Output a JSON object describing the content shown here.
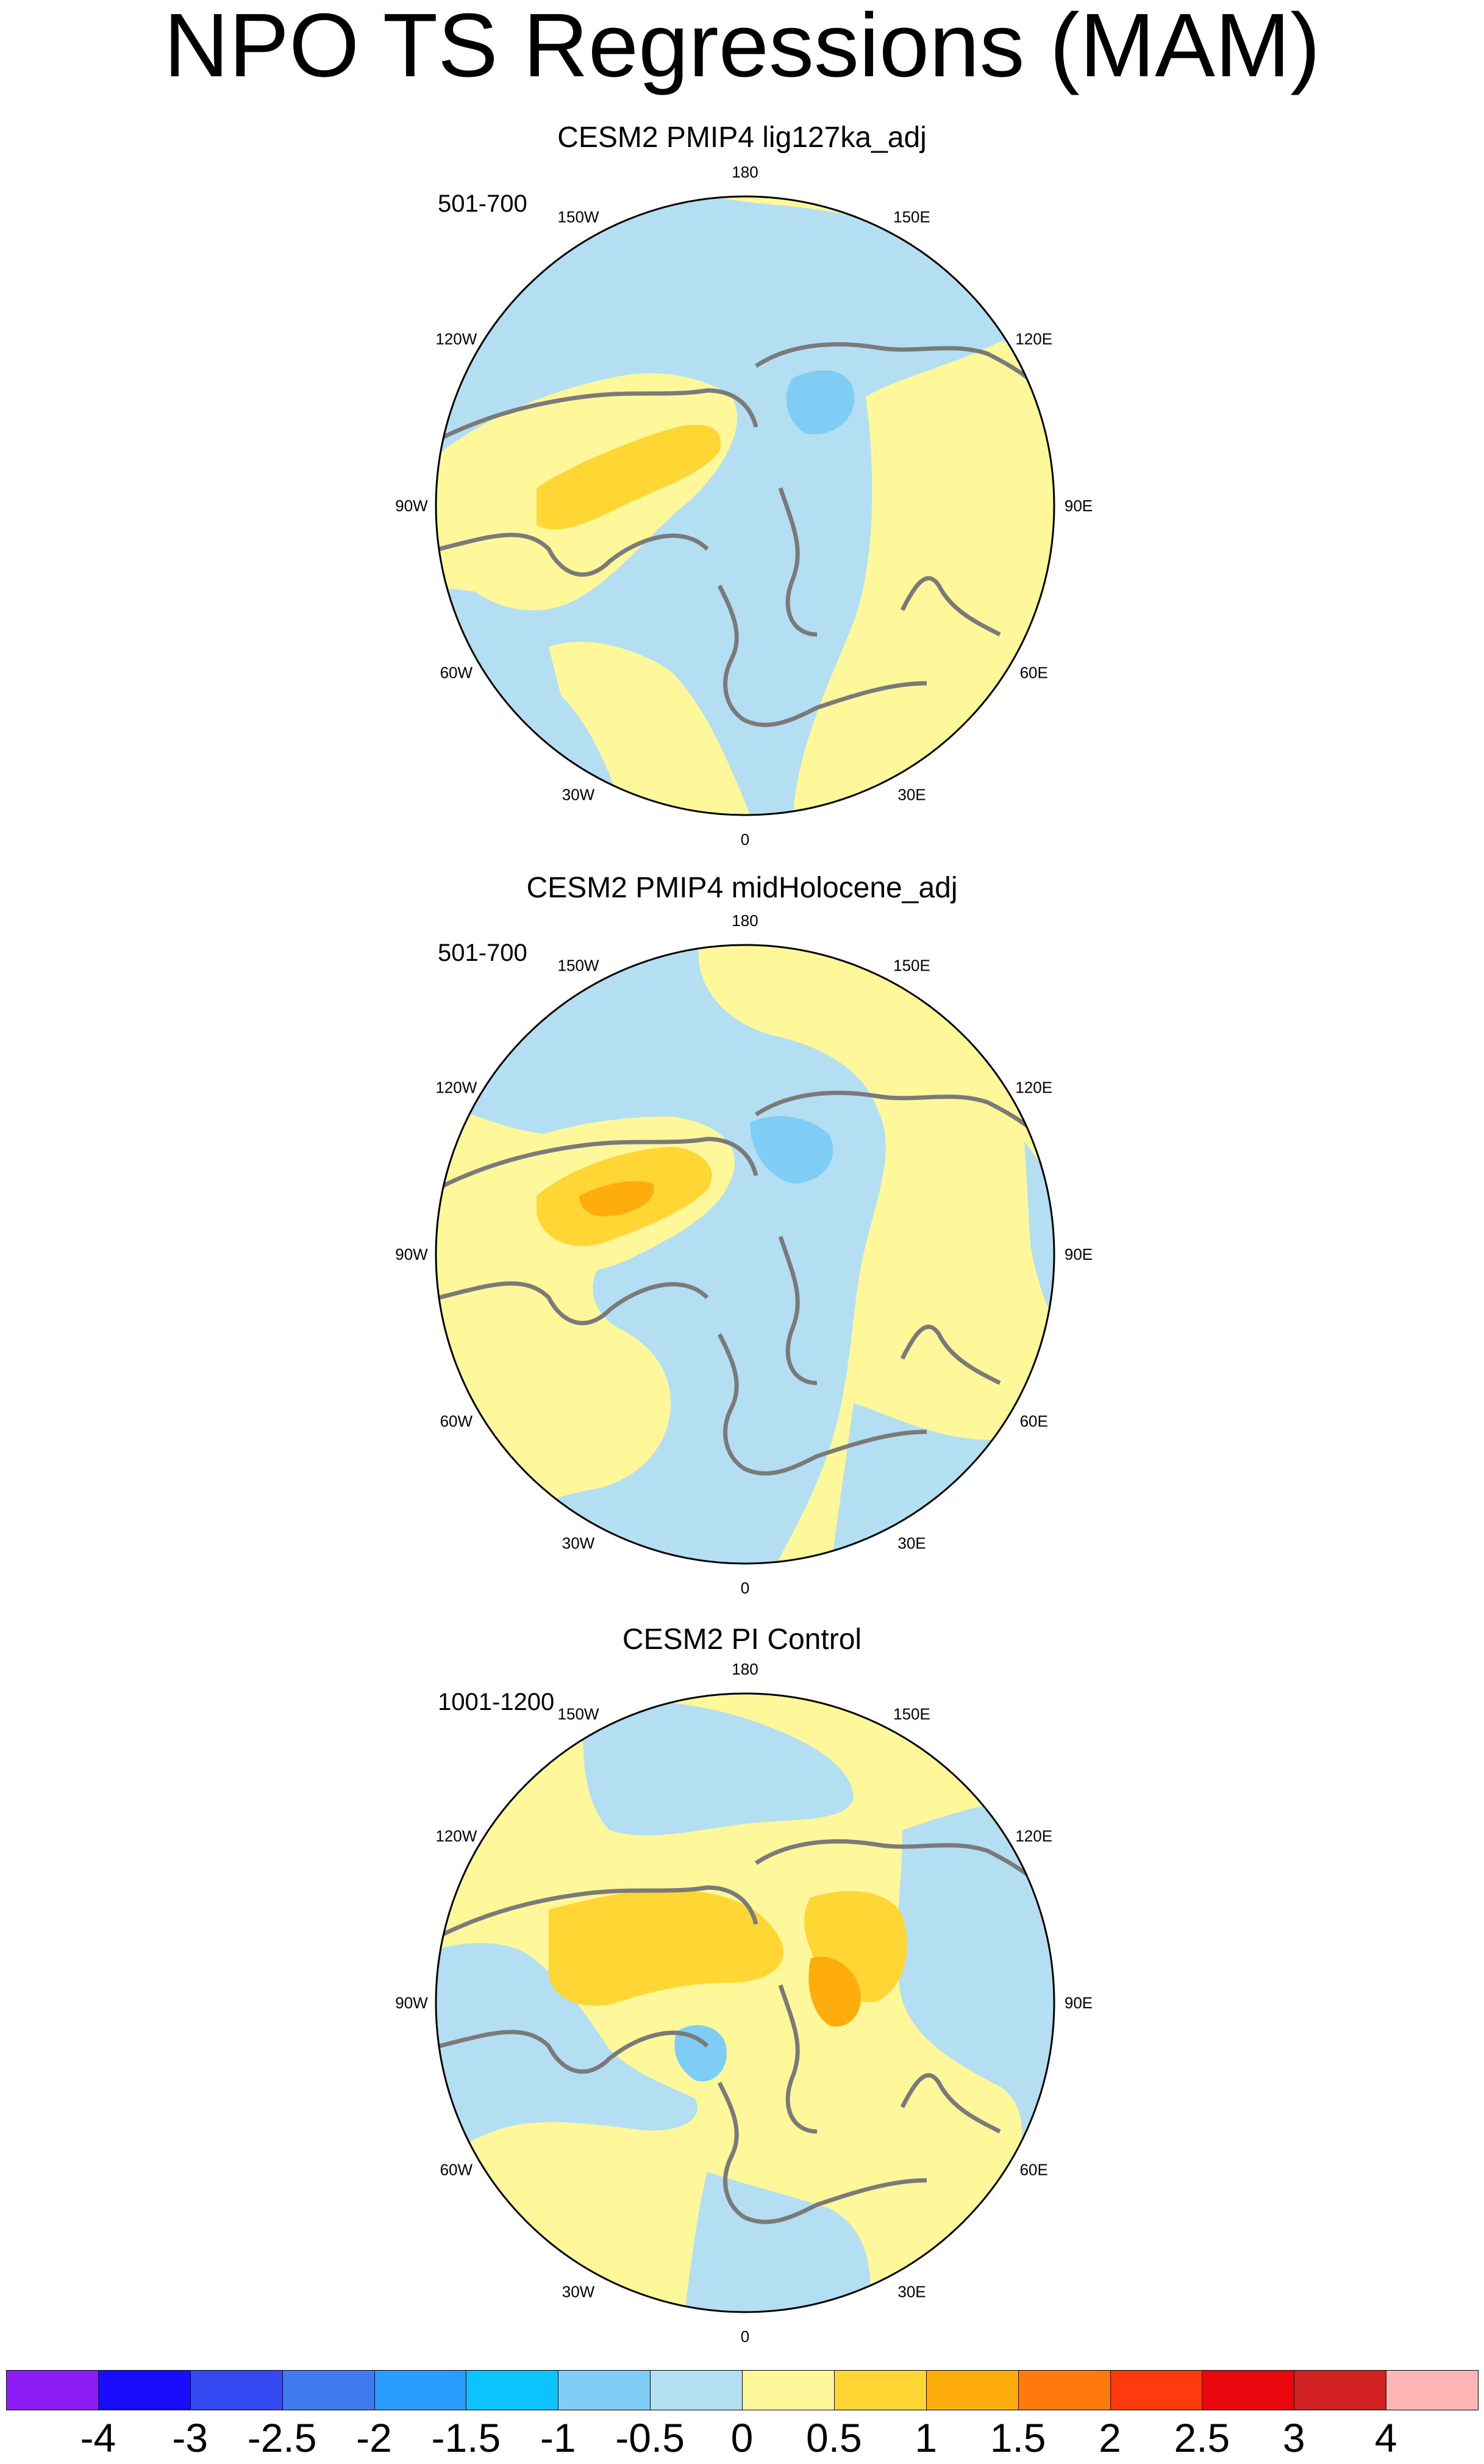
{
  "title": "NPO TS Regressions (MAM)",
  "panels": [
    {
      "title": "CESM2 PMIP4 lig127ka_adj",
      "period": "501-700"
    },
    {
      "title": "CESM2 PMIP4 midHolocene_adj",
      "period": "501-700"
    },
    {
      "title": "CESM2 PI Control",
      "period": "1001-1200"
    }
  ],
  "longitude_labels": [
    "180",
    "150E",
    "120E",
    "90E",
    "60E",
    "30E",
    "0",
    "30W",
    "60W",
    "90W",
    "120W",
    "150W"
  ],
  "colorbar": {
    "colors": [
      "#8c1cf3",
      "#1a0dff",
      "#3348f0",
      "#3e7bf0",
      "#2a9bff",
      "#0ac3ff",
      "#7fccf4",
      "#b4dff3",
      "#fff89a",
      "#ffd633",
      "#ffac0d",
      "#ff7a0d",
      "#ff3a0d",
      "#e8080d",
      "#d0201f",
      "#ffb6b6"
    ],
    "labels": [
      "-4",
      "-3",
      "-2.5",
      "-2",
      "-1.5",
      "-1",
      "-0.5",
      "0",
      "0.5",
      "1",
      "1.5",
      "2",
      "2.5",
      "3",
      "4"
    ]
  },
  "colors": {
    "ocean_negative": "#b4dff3",
    "land_positive": "#fff89a",
    "moderate_positive": "#ffd633",
    "strong_positive": "#ffac0d",
    "moderate_negative": "#7fccf4",
    "coastline": "#7a7a7a"
  }
}
